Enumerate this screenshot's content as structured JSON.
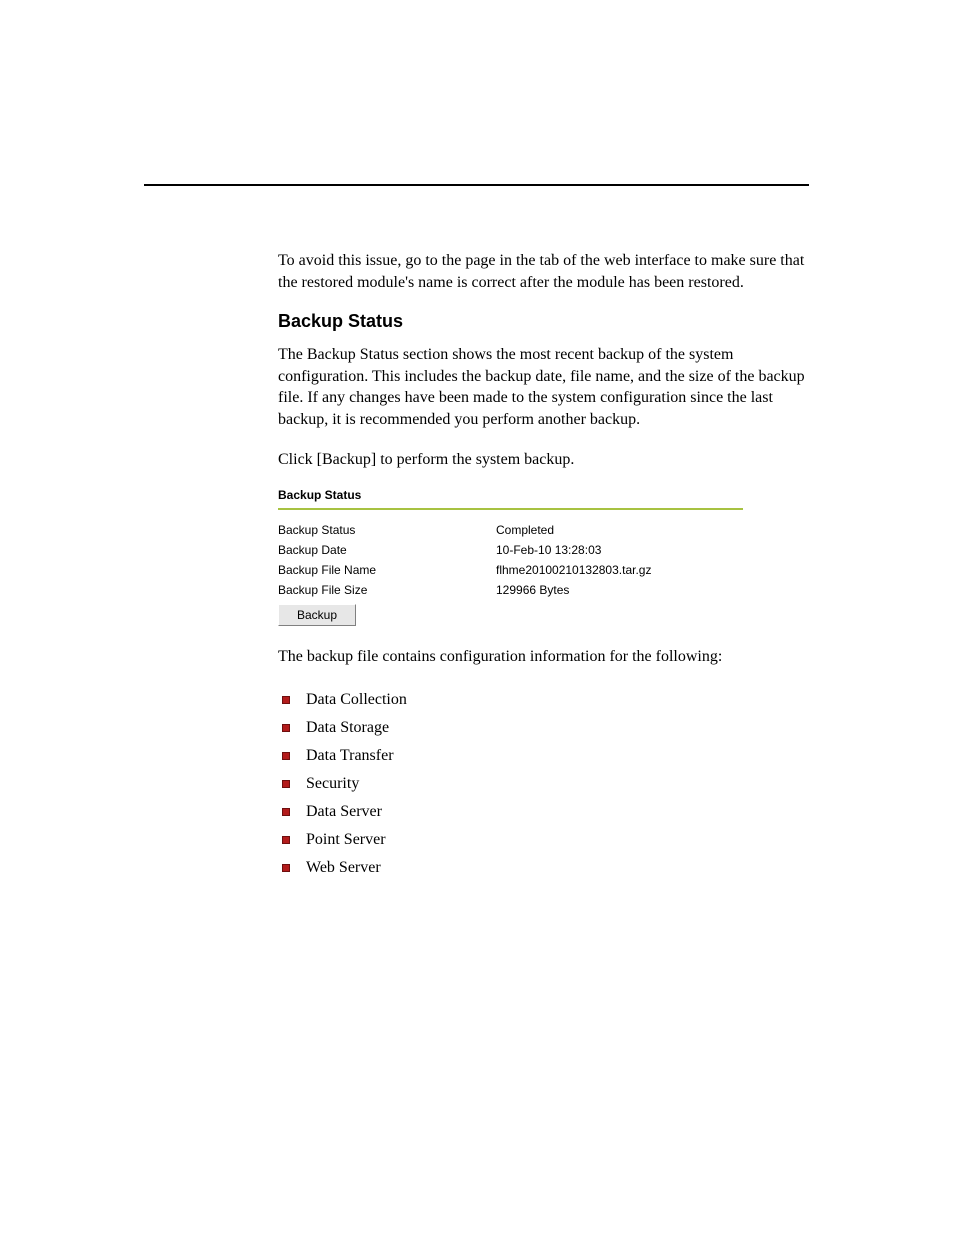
{
  "intro": {
    "p1_pre": "To avoid this issue, go to the ",
    "p1_mid": " page in the ",
    "p1_post": " tab of the web interface to make sure that the restored module's name is correct after the module has been restored."
  },
  "section_heading": "Backup Status",
  "body": {
    "p1": "The Backup Status section shows the most recent backup of the system configuration. This includes the backup date, file name, and the size of the backup file. If any changes have been made to the system configuration since the last backup, it is recommended you perform another backup.",
    "p2": "Click [Backup] to perform the system backup."
  },
  "panel": {
    "title": "Backup Status",
    "rows": [
      {
        "label": "Backup Status",
        "value": "Completed"
      },
      {
        "label": "Backup Date",
        "value": "10-Feb-10 13:28:03"
      },
      {
        "label": "Backup File Name",
        "value": "flhme20100210132803.tar.gz"
      },
      {
        "label": "Backup File Size",
        "value": "129966 Bytes"
      }
    ],
    "button": "Backup"
  },
  "post_panel": "The backup file contains configuration information for the following:",
  "items": [
    "Data Collection",
    "Data Storage",
    "Data Transfer",
    "Security",
    "Data Server",
    "Point Server",
    "Web Server"
  ],
  "colors": {
    "bullet": "#b31b1b",
    "rule_green": "#a7c241",
    "btn_bg": "#e7e7e7"
  }
}
